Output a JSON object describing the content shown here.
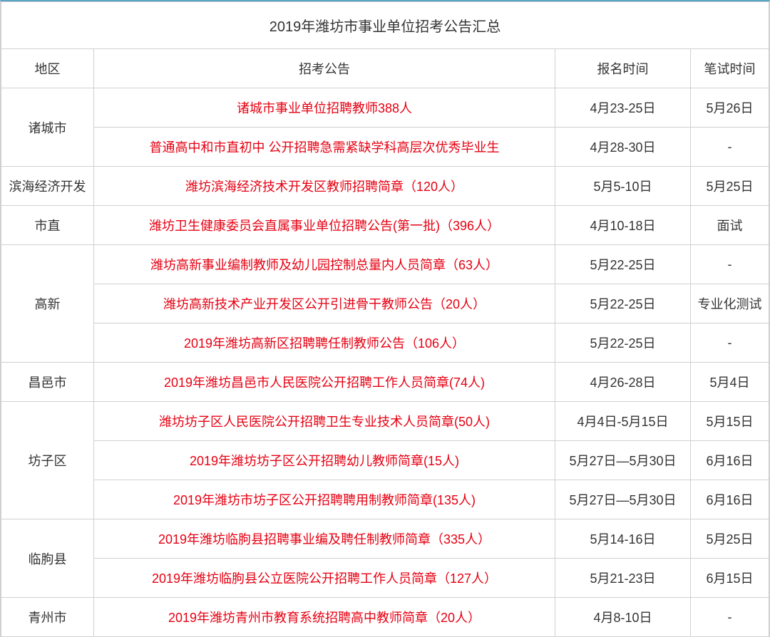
{
  "title": "2019年潍坊市事业单位招考公告汇总",
  "headers": {
    "region": "地区",
    "announcement": "招考公告",
    "register_time": "报名时间",
    "exam_time": "笔试时间"
  },
  "colors": {
    "top_border": "#5aa5c4",
    "cell_border": "#d0d0d0",
    "announcement_text": "#e60012",
    "normal_text": "#333333",
    "background": "#ffffff"
  },
  "font_sizes": {
    "title": 20,
    "header": 18,
    "cell": 18
  },
  "regions": [
    {
      "name": "诸城市",
      "rows": [
        {
          "announcement": "诸城市事业单位招聘教师388人",
          "register": "4月23-25日",
          "exam": "5月26日"
        },
        {
          "announcement": "普通高中和市直初中 公开招聘急需紧缺学科高层次优秀毕业生",
          "register": "4月28-30日",
          "exam": "-"
        }
      ]
    },
    {
      "name": "滨海经济开发",
      "rows": [
        {
          "announcement": "潍坊滨海经济技术开发区教师招聘简章（120人）",
          "register": "5月5-10日",
          "exam": "5月25日"
        }
      ]
    },
    {
      "name": "市直",
      "rows": [
        {
          "announcement": "潍坊卫生健康委员会直属事业单位招聘公告(第一批)（396人）",
          "register": "4月10-18日",
          "exam": "面试"
        }
      ]
    },
    {
      "name": "高新",
      "rows": [
        {
          "announcement": "潍坊高新事业编制教师及幼儿园控制总量内人员简章（63人）",
          "register": "5月22-25日",
          "exam": "-"
        },
        {
          "announcement": "潍坊高新技术产业开发区公开引进骨干教师公告（20人）",
          "register": "5月22-25日",
          "exam": "专业化测试"
        },
        {
          "announcement": "2019年潍坊高新区招聘聘任制教师公告（106人）",
          "register": "5月22-25日",
          "exam": "-"
        }
      ]
    },
    {
      "name": "昌邑市",
      "rows": [
        {
          "announcement": "2019年潍坊昌邑市人民医院公开招聘工作人员简章(74人)",
          "register": "4月26-28日",
          "exam": "5月4日"
        }
      ]
    },
    {
      "name": "坊子区",
      "rows": [
        {
          "announcement": "潍坊坊子区人民医院公开招聘卫生专业技术人员简章(50人)",
          "register": "4月4日-5月15日",
          "exam": "5月15日"
        },
        {
          "announcement": "2019年潍坊坊子区公开招聘幼儿教师简章(15人)",
          "register": "5月27日—5月30日",
          "exam": "6月16日"
        },
        {
          "announcement": "2019年潍坊市坊子区公开招聘聘用制教师简章(135人)",
          "register": "5月27日—5月30日",
          "exam": "6月16日"
        }
      ]
    },
    {
      "name": "临朐县",
      "rows": [
        {
          "announcement": "2019年潍坊临朐县招聘事业编及聘任制教师简章（335人）",
          "register": "5月14-16日",
          "exam": "5月25日"
        },
        {
          "announcement": "2019年潍坊临朐县公立医院公开招聘工作人员简章（127人）",
          "register": "5月21-23日",
          "exam": "6月15日"
        }
      ]
    },
    {
      "name": "青州市",
      "rows": [
        {
          "announcement": "2019年潍坊青州市教育系统招聘高中教师简章（20人）",
          "register": "4月8-10日",
          "exam": "-"
        }
      ]
    }
  ]
}
